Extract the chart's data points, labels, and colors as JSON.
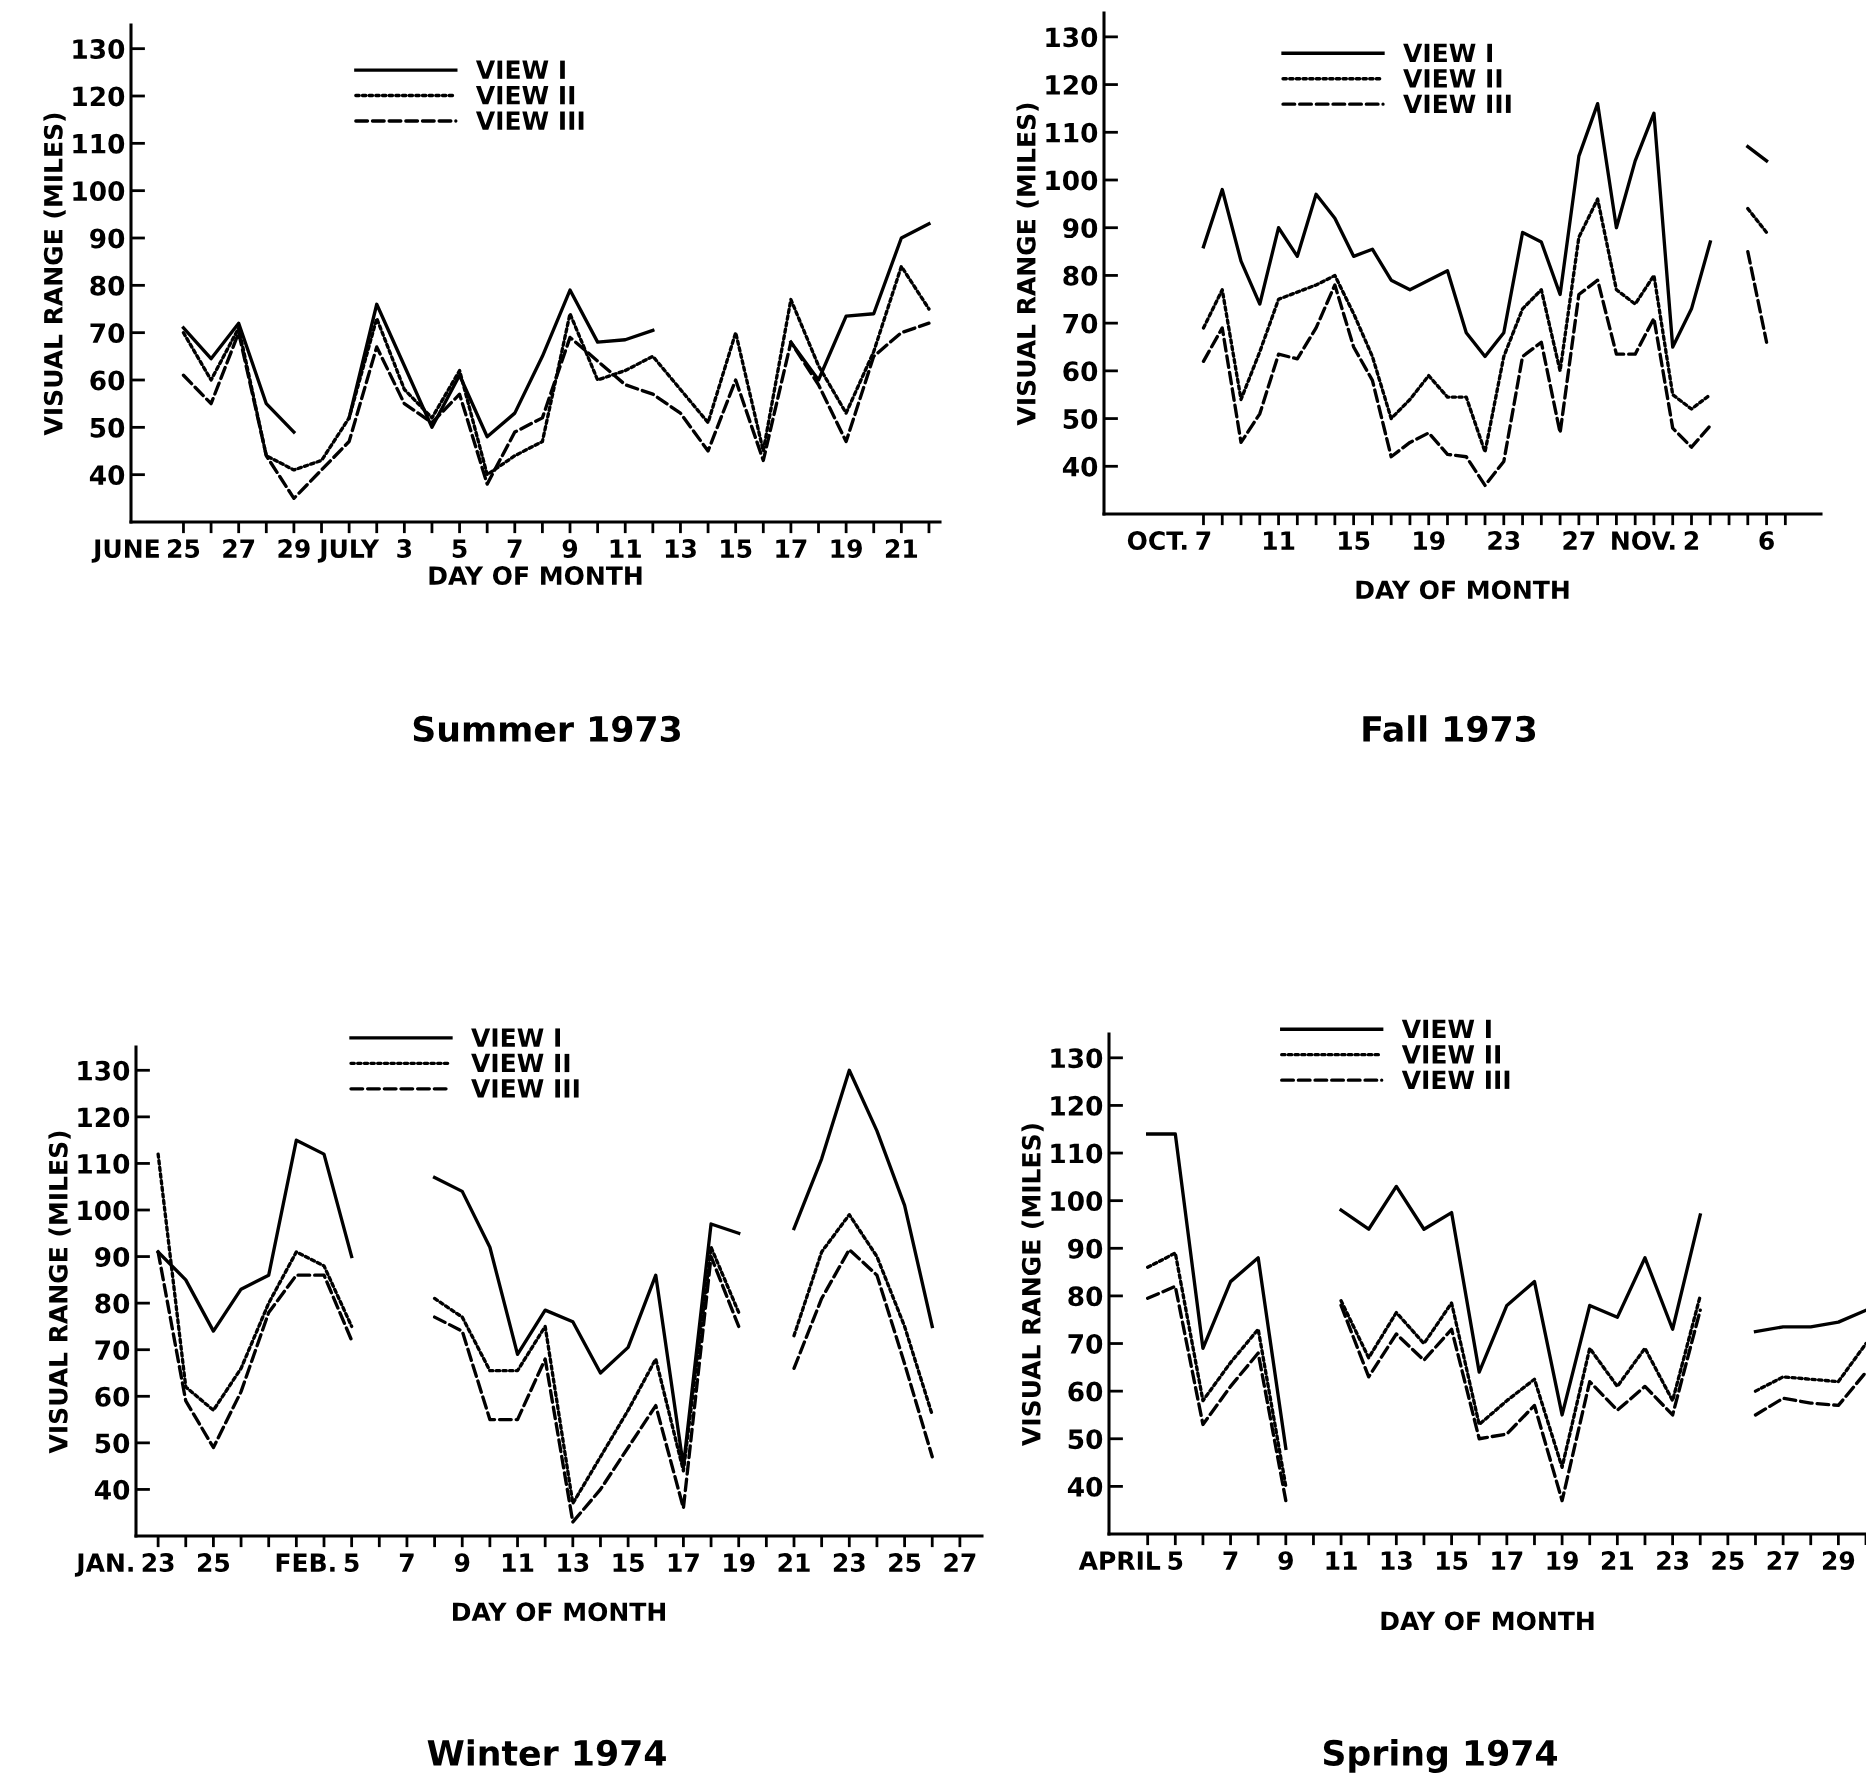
{
  "chart_data": [
    {
      "type": "line",
      "title": "Summer 1973",
      "xlabel": "DAY OF MONTH",
      "ylabel": "VISUAL RANGE (MILES)",
      "ylim": [
        30,
        135
      ],
      "yticks": [
        40,
        50,
        60,
        70,
        80,
        90,
        100,
        110,
        120,
        130
      ],
      "legend": "top",
      "grid": false,
      "annotations": [
        "JUNE"
      ],
      "categories": [
        "25",
        null,
        "27",
        null,
        "29",
        null,
        "JULY",
        null,
        "3",
        null,
        "5",
        null,
        "7",
        null,
        "9",
        null,
        "11",
        null,
        "13",
        null,
        "15",
        null,
        "17",
        null,
        "19",
        null,
        "21",
        null
      ],
      "series": [
        {
          "name": "VIEW I",
          "color": "#000000",
          "line_style": "solid",
          "values": [
            71,
            64.5,
            72,
            55,
            49,
            null,
            52,
            76,
            63,
            50,
            61,
            48,
            53,
            65,
            79,
            68,
            68.5,
            70.5,
            null,
            null,
            null,
            null,
            68,
            60,
            73.5,
            74,
            90,
            93
          ]
        },
        {
          "name": "VIEW II",
          "color": "#000000",
          "line_style": "dotted",
          "values": [
            70,
            60,
            71,
            44,
            41,
            43,
            52,
            73,
            58,
            52,
            62,
            40,
            44,
            47,
            74,
            60,
            62,
            65,
            58,
            51,
            70,
            45,
            77,
            63,
            53,
            66,
            84,
            75
          ]
        },
        {
          "name": "VIEW III",
          "color": "#000000",
          "line_style": "dashed",
          "values": [
            61,
            55,
            70,
            44,
            35,
            41,
            47,
            67,
            55,
            51,
            57,
            38,
            49,
            52,
            69,
            64,
            59,
            57,
            53,
            45,
            60,
            43,
            68,
            59,
            47,
            65,
            70,
            72
          ]
        }
      ]
    },
    {
      "type": "line",
      "title": "Fall 1973",
      "xlabel": "DAY OF MONTH",
      "ylabel": "VISUAL RANGE (MILES)",
      "ylim": [
        30,
        135
      ],
      "yticks": [
        40,
        50,
        60,
        70,
        80,
        90,
        100,
        110,
        120,
        130
      ],
      "legend": "top",
      "grid": false,
      "annotations": [
        "OCT.",
        "NOV."
      ],
      "categories": [
        "7",
        null,
        null,
        null,
        "11",
        null,
        null,
        null,
        "15",
        null,
        null,
        null,
        "19",
        null,
        null,
        null,
        "23",
        null,
        null,
        null,
        "27",
        null,
        null,
        null,
        null,
        null,
        "2",
        null,
        null,
        null,
        "6",
        null
      ],
      "series": [
        {
          "name": "VIEW I",
          "color": "#000000",
          "line_style": "solid",
          "values": [
            86,
            98,
            83,
            74,
            90,
            84,
            97,
            92,
            84,
            85.5,
            79,
            77,
            79,
            81,
            68,
            63,
            68,
            89,
            87,
            76,
            105,
            116,
            90,
            104,
            114,
            65,
            73,
            87,
            null,
            107,
            104,
            null
          ]
        },
        {
          "name": "VIEW II",
          "color": "#000000",
          "line_style": "dotted",
          "values": [
            69,
            77,
            54,
            64,
            75,
            76.5,
            78,
            80,
            72,
            63,
            50,
            54,
            59,
            54.5,
            54.5,
            43,
            63,
            73,
            77,
            60,
            88,
            96,
            77,
            74,
            80,
            55,
            52,
            55,
            null,
            94,
            89,
            null
          ]
        },
        {
          "name": "VIEW III",
          "color": "#000000",
          "line_style": "dashed",
          "values": [
            62,
            69,
            45,
            51,
            63.5,
            62.5,
            69,
            78,
            65,
            58,
            42,
            45,
            47,
            42.5,
            42,
            36,
            41,
            63,
            66,
            47,
            76,
            79,
            63.5,
            63.5,
            71,
            48,
            44,
            48.5,
            null,
            85,
            66,
            null
          ]
        }
      ]
    },
    {
      "type": "line",
      "title": "Winter 1974",
      "xlabel": "DAY OF MONTH",
      "ylabel": "VISUAL RANGE (MILES)",
      "ylim": [
        30,
        135
      ],
      "yticks": [
        40,
        50,
        60,
        70,
        80,
        90,
        100,
        110,
        120,
        130
      ],
      "legend": "top",
      "grid": false,
      "annotations": [
        "JAN.",
        "FEB."
      ],
      "categories": [
        "23",
        null,
        "25",
        null,
        null,
        null,
        null,
        "5",
        null,
        "7",
        null,
        "9",
        null,
        "11",
        null,
        "13",
        null,
        "15",
        null,
        "17",
        null,
        "19",
        null,
        "21",
        null,
        "23",
        null,
        "25",
        null,
        "27"
      ],
      "series": [
        {
          "name": "VIEW I",
          "color": "#000000",
          "line_style": "solid",
          "values": [
            91,
            85,
            74,
            83,
            86,
            115,
            112,
            90,
            null,
            null,
            107,
            104,
            92,
            69,
            78.5,
            76,
            65,
            70.5,
            86,
            45,
            97,
            95,
            null,
            96,
            111,
            130,
            117,
            101,
            75,
            null
          ]
        },
        {
          "name": "VIEW II",
          "color": "#000000",
          "line_style": "dotted",
          "values": [
            112,
            62,
            57,
            66,
            80,
            91,
            88,
            75,
            null,
            null,
            81,
            77,
            65.5,
            65.5,
            75,
            37,
            47,
            57,
            68,
            44,
            92,
            78,
            null,
            73,
            91,
            99,
            90,
            75,
            56,
            null
          ]
        },
        {
          "name": "VIEW III",
          "color": "#000000",
          "line_style": "dashed",
          "values": [
            91,
            59,
            49,
            61,
            78,
            86,
            86,
            72,
            null,
            null,
            77,
            74,
            55,
            55,
            68,
            33,
            40,
            49,
            58,
            36,
            90,
            75,
            null,
            66,
            81,
            91.5,
            86,
            67,
            47,
            null
          ]
        }
      ]
    },
    {
      "type": "line",
      "title": "Spring 1974",
      "xlabel": "DAY OF MONTH",
      "ylabel": "VISUAL RANGE (MILES)",
      "ylim": [
        30,
        135
      ],
      "yticks": [
        40,
        50,
        60,
        70,
        80,
        90,
        100,
        110,
        120,
        130
      ],
      "legend": "top",
      "grid": false,
      "annotations": [
        "APRIL"
      ],
      "categories": [
        null,
        "5",
        null,
        "7",
        null,
        "9",
        null,
        "11",
        null,
        "13",
        null,
        "15",
        null,
        "17",
        null,
        "19",
        null,
        "21",
        null,
        "23",
        null,
        "25",
        null,
        "27",
        null,
        "29",
        null
      ],
      "series": [
        {
          "name": "VIEW I",
          "color": "#000000",
          "line_style": "solid",
          "values": [
            114,
            114,
            69,
            83,
            88,
            48,
            null,
            98,
            94,
            103,
            94,
            97.5,
            64,
            78,
            83,
            55,
            78,
            75.5,
            88,
            73,
            97,
            null,
            72.5,
            73.5,
            73.5,
            74.5,
            77
          ]
        },
        {
          "name": "VIEW II",
          "color": "#000000",
          "line_style": "dotted",
          "values": [
            86,
            89,
            58,
            66,
            73,
            40,
            null,
            79,
            67,
            76.5,
            70,
            78.5,
            53,
            58,
            62.5,
            44,
            69,
            61,
            69,
            58,
            80,
            null,
            60,
            63,
            62.5,
            62,
            70
          ]
        },
        {
          "name": "VIEW III",
          "color": "#000000",
          "line_style": "dashed",
          "values": [
            79.5,
            82,
            53,
            61,
            68,
            37,
            null,
            78,
            63,
            72,
            66.5,
            73,
            50,
            51,
            57,
            37,
            62,
            56,
            61,
            55,
            77,
            null,
            55,
            58.5,
            57.5,
            57,
            64
          ]
        }
      ]
    }
  ]
}
